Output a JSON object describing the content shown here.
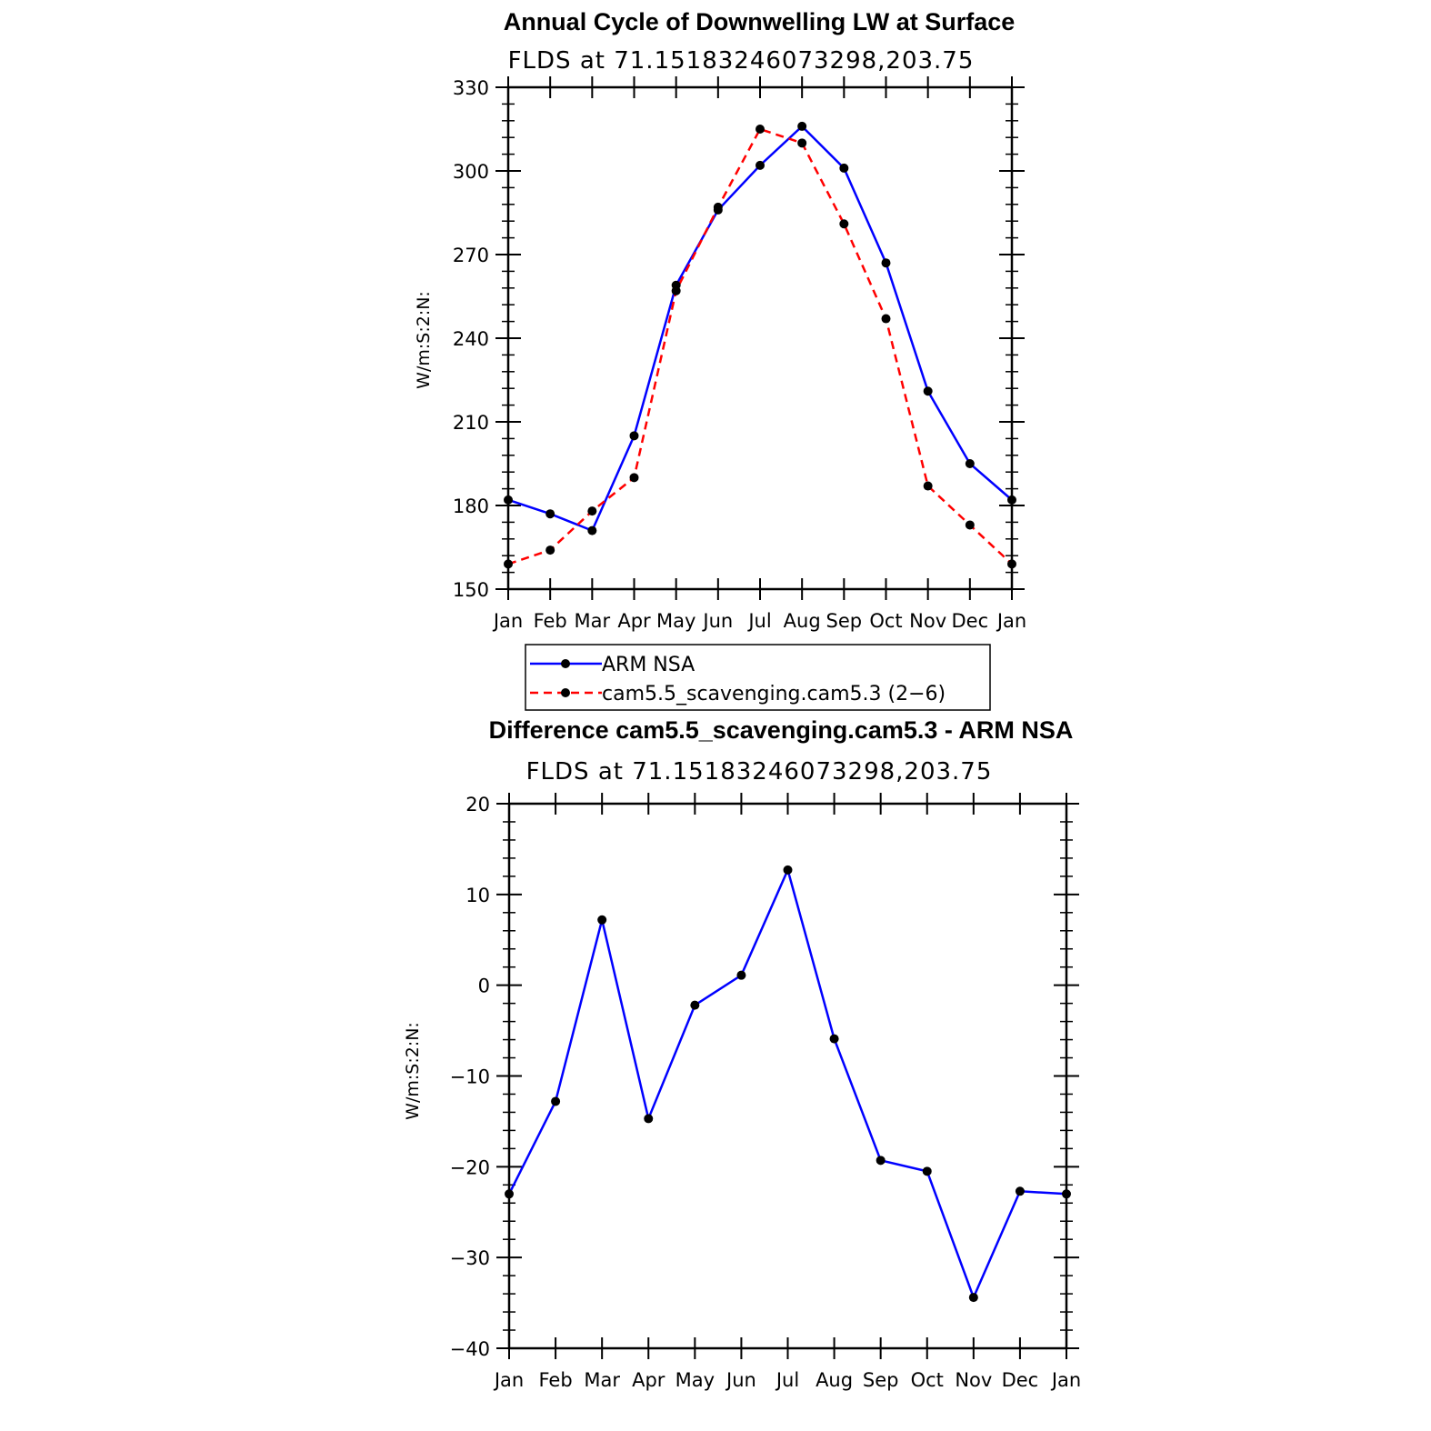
{
  "chart_data": [
    {
      "type": "line",
      "title": "Annual Cycle of Downwelling LW at Surface",
      "subtitle": "FLDS at 71.15183246073298,203.75",
      "ylabel": "W/m:S:2:N:",
      "xlabel": "",
      "categories": [
        "Jan",
        "Feb",
        "Mar",
        "Apr",
        "May",
        "Jun",
        "Jul",
        "Aug",
        "Sep",
        "Oct",
        "Nov",
        "Dec",
        "Jan"
      ],
      "ylim": [
        150,
        330
      ],
      "yticks": [
        "150",
        "180",
        "210",
        "240",
        "270",
        "300",
        "330"
      ],
      "series": [
        {
          "name": "ARM NSA",
          "color": "#0000ff",
          "dash": "solid",
          "values": [
            182,
            177,
            171,
            205,
            259,
            286,
            302,
            316,
            301,
            267,
            221,
            195,
            182
          ]
        },
        {
          "name": "cam5.5_scavenging.cam5.3 (2−6)",
          "color": "#ff0000",
          "dash": "dashed",
          "values": [
            159,
            164,
            178,
            190,
            257,
            287,
            315,
            310,
            281,
            247,
            187,
            173,
            159
          ]
        }
      ],
      "legend": "below plot"
    },
    {
      "type": "line",
      "title": "Difference cam5.5_scavenging.cam5.3 - ARM NSA",
      "subtitle": "FLDS at 71.15183246073298,203.75",
      "ylabel": "W/m:S:2:N:",
      "xlabel": "",
      "categories": [
        "Jan",
        "Feb",
        "Mar",
        "Apr",
        "May",
        "Jun",
        "Jul",
        "Aug",
        "Sep",
        "Oct",
        "Nov",
        "Dec",
        "Jan"
      ],
      "ylim": [
        -40,
        20
      ],
      "yticks": [
        "−40",
        "−30",
        "−20",
        "−10",
        "0",
        "10",
        "20"
      ],
      "series": [
        {
          "color": "#0000ff",
          "dash": "solid",
          "values": [
            -23,
            -12.8,
            7.2,
            -14.7,
            -2.2,
            1.1,
            12.7,
            -5.9,
            -19.3,
            -20.5,
            -34.4,
            -22.7,
            -23
          ]
        }
      ]
    }
  ]
}
